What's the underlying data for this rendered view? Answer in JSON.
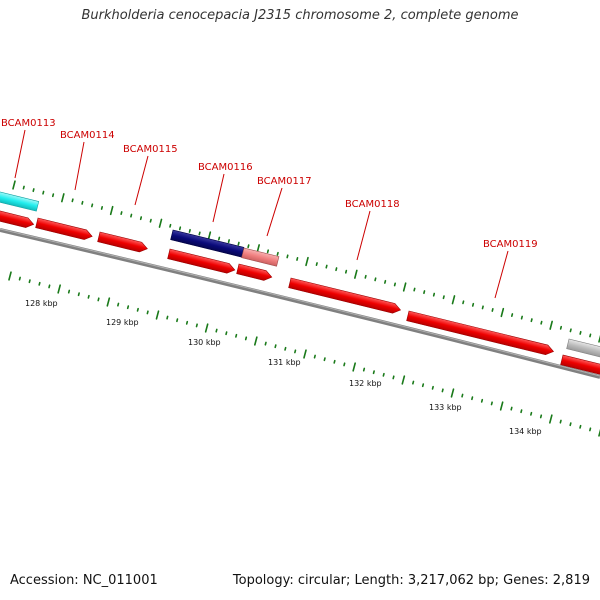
{
  "title": "Burkholderia cenocepacia J2315 chromosome 2, complete genome",
  "footer": {
    "accession": "Accession: NC_011001",
    "summary": "Topology: circular; Length: 3,217,062 bp; Genes: 2,819"
  },
  "colors": {
    "label": "#cc0000",
    "gene_red": "#ee0000",
    "gene_cyan": "#22eeee",
    "gene_navy": "#0a0a7a",
    "gene_pink": "#f08080",
    "gene_gray": "#bbbbbb",
    "backbone": "#808080",
    "tick": "#1a7a1a"
  },
  "scale_labels": [
    "128 kbp",
    "129 kbp",
    "130 kbp",
    "131 kbp",
    "132 kbp",
    "133 kbp",
    "134 kbp"
  ],
  "gene_labels": [
    "BCAM0113",
    "BCAM0114",
    "BCAM0115",
    "BCAM0116",
    "BCAM0117",
    "BCAM0118",
    "BCAM0119"
  ]
}
